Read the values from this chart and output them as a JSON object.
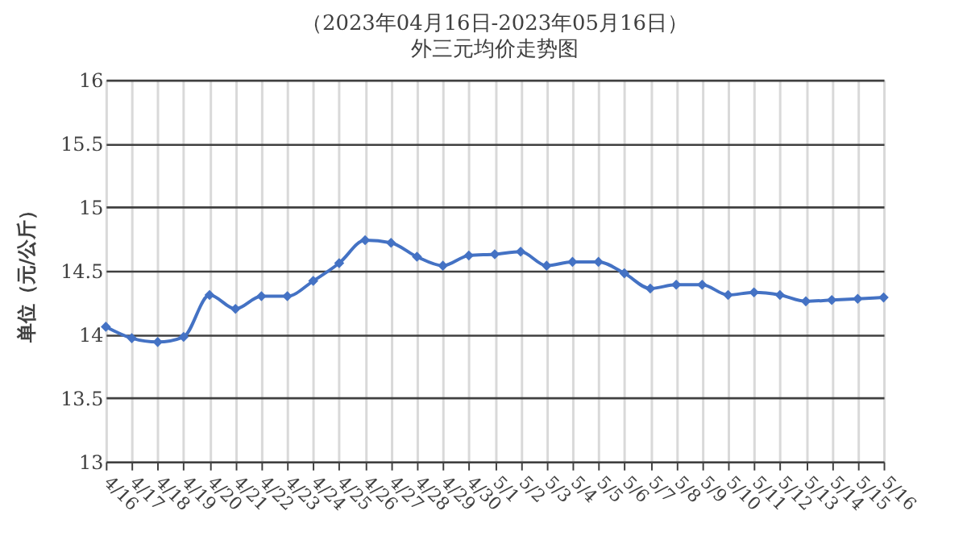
{
  "chart_data": {
    "type": "line",
    "title": "（2023年04月16日-2023年05月16日）",
    "subtitle": "外三元均价走势图",
    "ylabel": "单位（元/公斤）",
    "categories": [
      "4/16",
      "4/17",
      "4/18",
      "4/19",
      "4/20",
      "4/21",
      "4/22",
      "4/23",
      "4/24",
      "4/25",
      "4/26",
      "4/27",
      "4/28",
      "4/29",
      "4/30",
      "5/1",
      "5/2",
      "5/3",
      "5/4",
      "5/5",
      "5/6",
      "5/7",
      "5/8",
      "5/9",
      "5/10",
      "5/11",
      "5/12",
      "5/13",
      "5/14",
      "5/15",
      "5/16"
    ],
    "series": [
      {
        "color": "#4472c4",
        "values": [
          14.06,
          13.97,
          13.94,
          13.98,
          14.31,
          14.2,
          14.3,
          14.3,
          14.42,
          14.56,
          14.74,
          14.72,
          14.61,
          14.54,
          14.62,
          14.63,
          14.65,
          14.54,
          14.57,
          14.57,
          14.48,
          14.36,
          14.39,
          14.39,
          14.31,
          14.33,
          14.31,
          14.26,
          14.27,
          14.28,
          14.29
        ]
      }
    ],
    "ylim": [
      13,
      16
    ],
    "yticks": [
      13,
      13.5,
      14,
      14.5,
      15,
      15.5,
      16
    ],
    "grid": true,
    "legend": false,
    "marker": "diamond",
    "line_style": "solid"
  }
}
